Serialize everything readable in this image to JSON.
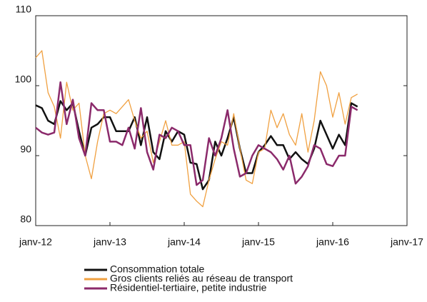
{
  "chart_data": {
    "type": "line",
    "x": [
      0,
      1,
      2,
      3,
      4,
      5,
      6,
      7,
      8,
      9,
      10,
      11,
      12,
      13,
      14,
      15,
      16,
      17,
      18,
      19,
      20,
      21,
      22,
      23,
      24,
      25,
      26,
      27,
      28,
      29,
      30,
      31,
      32,
      33,
      34,
      35,
      36,
      37,
      38,
      39,
      40,
      41,
      42,
      43,
      44,
      45,
      46,
      47,
      48,
      49,
      50,
      51,
      52
    ],
    "xlim": [
      0,
      60
    ],
    "xticks": [
      {
        "value": 0,
        "label": "janv-12"
      },
      {
        "value": 12,
        "label": "janv-13"
      },
      {
        "value": 24,
        "label": "janv-14"
      },
      {
        "value": 36,
        "label": "janv-15"
      },
      {
        "value": 48,
        "label": "janv-16"
      },
      {
        "value": 60,
        "label": "janv-17"
      }
    ],
    "ylim": [
      80,
      110
    ],
    "yticks": [
      80,
      90,
      100,
      110
    ],
    "grid": false,
    "series": [
      {
        "name": "Consommation totale",
        "color": "#111111",
        "width": 2.5,
        "values": [
          97.2,
          96.8,
          95,
          94.5,
          97.8,
          96.5,
          97.5,
          93.5,
          90,
          94,
          94.5,
          95.5,
          95.5,
          93.5,
          93.5,
          93.5,
          95.5,
          91.5,
          95.5,
          90.5,
          89.5,
          93.5,
          92,
          93.5,
          93,
          89,
          88.8,
          85.2,
          86.5,
          92,
          90,
          92.5,
          95.5,
          91,
          87.5,
          87.5,
          90.5,
          91.5,
          92.8,
          91.5,
          91.5,
          89.5,
          90.5,
          89.5,
          88.8,
          91,
          95,
          93,
          91,
          93,
          91.5,
          97.5,
          97
        ]
      },
      {
        "name": "Gros clients reliés au réseau de transport",
        "color": "#f0a040",
        "width": 1.3,
        "values": [
          104,
          105,
          99,
          97,
          92.5,
          100.5,
          96.5,
          97.5,
          90,
          86.7,
          92,
          96,
          96.5,
          96,
          97,
          98,
          95,
          92.5,
          93.5,
          89,
          92,
          95,
          91.5,
          91.5,
          92,
          84.5,
          83.5,
          82.7,
          86.5,
          89.5,
          92,
          91.5,
          96,
          91,
          86.5,
          86,
          90.5,
          91,
          96.5,
          94,
          96,
          93,
          91.5,
          96,
          90.5,
          95,
          102,
          100,
          95.5,
          99,
          94.5,
          98.3,
          98.8
        ]
      },
      {
        "name": "Résidentiel-tertiaire, petite industrie",
        "color": "#8b2a6b",
        "width": 2.5,
        "values": [
          94,
          93.3,
          93,
          93.3,
          100.5,
          94.5,
          98,
          92.5,
          90,
          97.5,
          96.5,
          96.5,
          92,
          92,
          91.5,
          94,
          91,
          96.8,
          90.5,
          88,
          93,
          92.5,
          94,
          93.5,
          91.5,
          91.5,
          85.8,
          86.5,
          92.5,
          90,
          92.5,
          96.5,
          91,
          87,
          87.5,
          90,
          91.5,
          91,
          90.5,
          89.5,
          88,
          90,
          86,
          87,
          88.5,
          91.5,
          91,
          88.8,
          88.5,
          90,
          90,
          97,
          96.5
        ]
      }
    ]
  }
}
